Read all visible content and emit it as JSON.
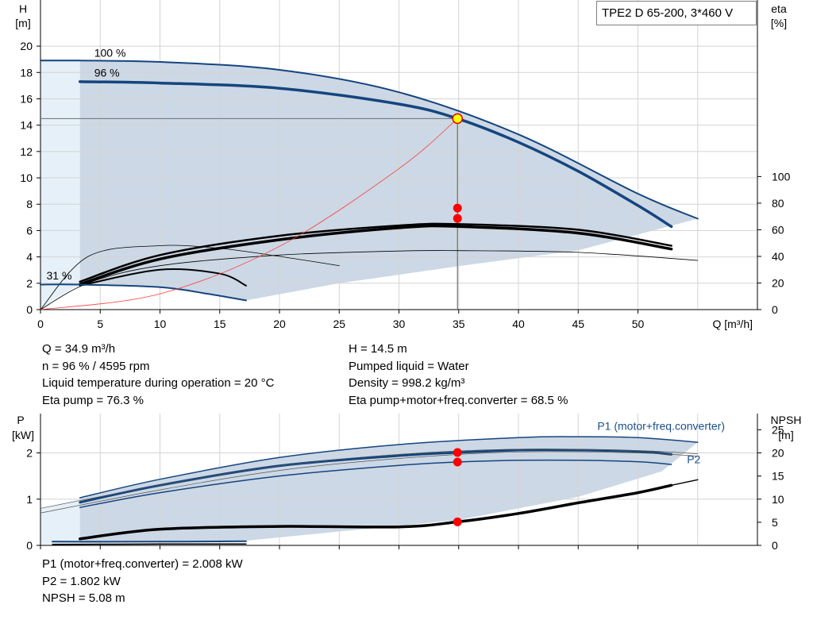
{
  "title": "TPE2 D 65-200, 3*460 V",
  "info_top_left": [
    "Q = 34.9 m³/h",
    "n = 96 % / 4595 rpm",
    "Liquid temperature during operation = 20 °C",
    "Eta pump = 76.3 %"
  ],
  "info_top_right": [
    "H = 14.5 m",
    "Pumped liquid = Water",
    "Density = 998.2 kg/m³",
    "Eta pump+motor+freq.converter = 68.5 %"
  ],
  "info_bottom": [
    "P1 (motor+freq.converter) = 2.008 kW",
    "P2 = 1.802 kW",
    "NPSH = 5.08 m"
  ],
  "chart_data": [
    {
      "type": "line",
      "name": "head-efficiency",
      "x_label": "Q [m³/h]",
      "y_label_left": [
        "H",
        "[m]"
      ],
      "y_label_right": [
        "eta",
        "[%]"
      ],
      "x_ticks": [
        0,
        5,
        10,
        15,
        20,
        25,
        30,
        35,
        40,
        45,
        50
      ],
      "y_ticks_left": [
        0,
        2,
        4,
        6,
        8,
        10,
        12,
        14,
        16,
        18,
        20
      ],
      "y_ticks_right": [
        0,
        20,
        40,
        60,
        80,
        100
      ],
      "xlim": [
        0,
        60
      ],
      "ylim_left": [
        0,
        23.5
      ],
      "ylim_right": [
        0,
        100
      ],
      "grid": true,
      "speed_labels": [
        {
          "text": "100 %",
          "x": 4.5,
          "y": 19.2
        },
        {
          "text": "96 %",
          "x": 4.5,
          "y": 17.7
        },
        {
          "text": "31 %",
          "x": 0.5,
          "y": 2.3
        }
      ],
      "head_curves": [
        {
          "label": "100 %",
          "points": [
            [
              0,
              18.9
            ],
            [
              3.3,
              18.9
            ],
            [
              10,
              18.8
            ],
            [
              20,
              18.2
            ],
            [
              30,
              16.5
            ],
            [
              40,
              13.3
            ],
            [
              50,
              8.8
            ],
            [
              55,
              6.9
            ]
          ]
        },
        {
          "label": "96 %",
          "points": [
            [
              3.3,
              17.3
            ],
            [
              10,
              17.2
            ],
            [
              20,
              16.8
            ],
            [
              30,
              15.6
            ],
            [
              34.9,
              14.5
            ],
            [
              40,
              12.7
            ],
            [
              45,
              10.5
            ],
            [
              50,
              7.9
            ],
            [
              52.8,
              6.3
            ]
          ]
        },
        {
          "label": "31 %",
          "points": [
            [
              0,
              1.9
            ],
            [
              3.3,
              1.9
            ],
            [
              10,
              1.7
            ],
            [
              14,
              1.2
            ],
            [
              17.2,
              0.7
            ]
          ]
        }
      ],
      "efficiency_curves": [
        {
          "points": [
            [
              0,
              0
            ],
            [
              4,
              20
            ],
            [
              10,
              33
            ],
            [
              20,
              41
            ],
            [
              30,
              44
            ],
            [
              35,
              44.3
            ],
            [
              45,
              43
            ],
            [
              55,
              37
            ]
          ],
          "width": 0.8
        },
        {
          "points": [
            [
              3.3,
              21
            ],
            [
              10,
              41
            ],
            [
              20,
              55.5
            ],
            [
              30,
              63.2
            ],
            [
              35,
              64.2
            ],
            [
              45,
              60
            ],
            [
              52.8,
              48
            ]
          ],
          "width": 2.5
        },
        {
          "points": [
            [
              3.3,
              19
            ],
            [
              10,
              38
            ],
            [
              20,
              52.5
            ],
            [
              30,
              61.5
            ],
            [
              34.9,
              62.5
            ],
            [
              45,
              57.5
            ],
            [
              52.8,
              45.5
            ]
          ],
          "width": 3.5
        },
        {
          "points": [
            [
              0,
              0
            ],
            [
              4,
              40
            ],
            [
              10,
              48
            ],
            [
              15,
              46
            ],
            [
              20,
              40
            ],
            [
              25,
              33
            ]
          ],
          "width": 0.8
        },
        {
          "points": [
            [
              3.3,
              18
            ],
            [
              10,
              30
            ],
            [
              15,
              27
            ],
            [
              17.2,
              18
            ]
          ],
          "width": 2
        }
      ],
      "system_curve": {
        "points": [
          [
            0,
            0
          ],
          [
            10,
            1.2
          ],
          [
            20,
            4.8
          ],
          [
            30,
            10.7
          ],
          [
            34.9,
            14.5
          ]
        ]
      },
      "duty_point": {
        "x": 34.9,
        "y": 14.5
      },
      "eta_points": [
        {
          "x": 34.9,
          "y": 76.3
        },
        {
          "x": 34.9,
          "y": 68.5
        }
      ]
    },
    {
      "type": "line",
      "name": "power-npsh",
      "y_label_left": [
        "P",
        "[kW]"
      ],
      "y_label_right": [
        "NPSH",
        "[m]"
      ],
      "x_ticks": [
        0,
        5,
        10,
        15,
        20,
        25,
        30,
        35,
        40,
        45,
        50
      ],
      "y_ticks_left": [
        0,
        1,
        2
      ],
      "y_ticks_right": [
        0,
        5,
        10,
        15,
        20,
        25
      ],
      "xlim": [
        0,
        60
      ],
      "ylim_left": [
        0,
        2.85
      ],
      "ylim_right": [
        0,
        28.5
      ],
      "grid": true,
      "series_labels": [
        {
          "text": "P1 (motor+freq.converter)",
          "x": 46.6,
          "y": 2.5
        },
        {
          "text": "P2",
          "x": 54.1,
          "y": 1.78
        }
      ],
      "power_curves": [
        {
          "points": [
            [
              3.3,
              1.03
            ],
            [
              10,
              1.43
            ],
            [
              20,
              1.9
            ],
            [
              30,
              2.18
            ],
            [
              40,
              2.33
            ],
            [
              45,
              2.35
            ],
            [
              50,
              2.33
            ],
            [
              55,
              2.23
            ]
          ],
          "width": 1.5
        },
        {
          "points": [
            [
              3.3,
              0.93
            ],
            [
              10,
              1.3
            ],
            [
              20,
              1.72
            ],
            [
              30,
              1.94
            ],
            [
              34.9,
              2.008
            ],
            [
              40,
              2.06
            ],
            [
              45,
              2.06
            ],
            [
              50,
              2.03
            ],
            [
              52.8,
              1.97
            ]
          ],
          "width": 3
        },
        {
          "points": [
            [
              3.3,
              0.82
            ],
            [
              10,
              1.14
            ],
            [
              20,
              1.5
            ],
            [
              30,
              1.73
            ],
            [
              34.9,
              1.802
            ],
            [
              40,
              1.84
            ],
            [
              45,
              1.84
            ],
            [
              50,
              1.81
            ],
            [
              52.8,
              1.75
            ]
          ],
          "width": 1.5
        },
        {
          "points": [
            [
              0,
              0.8
            ],
            [
              10,
              1.3
            ],
            [
              20,
              1.72
            ],
            [
              30,
              1.97
            ],
            [
              40,
              2.08
            ],
            [
              50,
              2.05
            ],
            [
              55,
              1.98
            ]
          ],
          "width": 0.7
        },
        {
          "points": [
            [
              0,
              0.7
            ],
            [
              10,
              1.2
            ],
            [
              20,
              1.62
            ],
            [
              30,
              1.88
            ],
            [
              40,
              2.02
            ],
            [
              50,
              2.0
            ],
            [
              55,
              1.93
            ]
          ],
          "width": 0.7
        },
        {
          "points": [
            [
              1,
              0.08
            ],
            [
              10,
              0.08
            ],
            [
              17.2,
              0.09
            ]
          ],
          "width": 2
        }
      ],
      "npsh_curves": [
        {
          "points": [
            [
              3.3,
              1.4
            ],
            [
              10,
              3.5
            ],
            [
              20,
              4.1
            ],
            [
              30,
              4.0
            ],
            [
              34.9,
              5.08
            ],
            [
              40,
              6.9
            ],
            [
              45,
              9.2
            ],
            [
              50,
              11.4
            ],
            [
              52.8,
              13.0
            ]
          ],
          "width": 3.5
        },
        {
          "points": [
            [
              52.8,
              13.0
            ],
            [
              55,
              14.2
            ]
          ],
          "width": 1.5
        },
        {
          "points": [
            [
              1,
              0.2
            ],
            [
              10,
              0.3
            ],
            [
              17.2,
              0.3
            ]
          ],
          "width": 1.5
        }
      ],
      "markers": [
        {
          "x": 34.9,
          "p": 2.008
        },
        {
          "x": 34.9,
          "p": 1.802
        },
        {
          "x": 34.9,
          "npsh": 5.08
        }
      ]
    }
  ],
  "colors": {
    "band": "#c9d6e4",
    "band_light": "#e6f0f8",
    "curve_blue": "#15457f",
    "label_blue": "#1a4f8a",
    "marker_red": "#ff0000",
    "duty_fill": "#ffff00",
    "grid": "#d4d4d4"
  }
}
